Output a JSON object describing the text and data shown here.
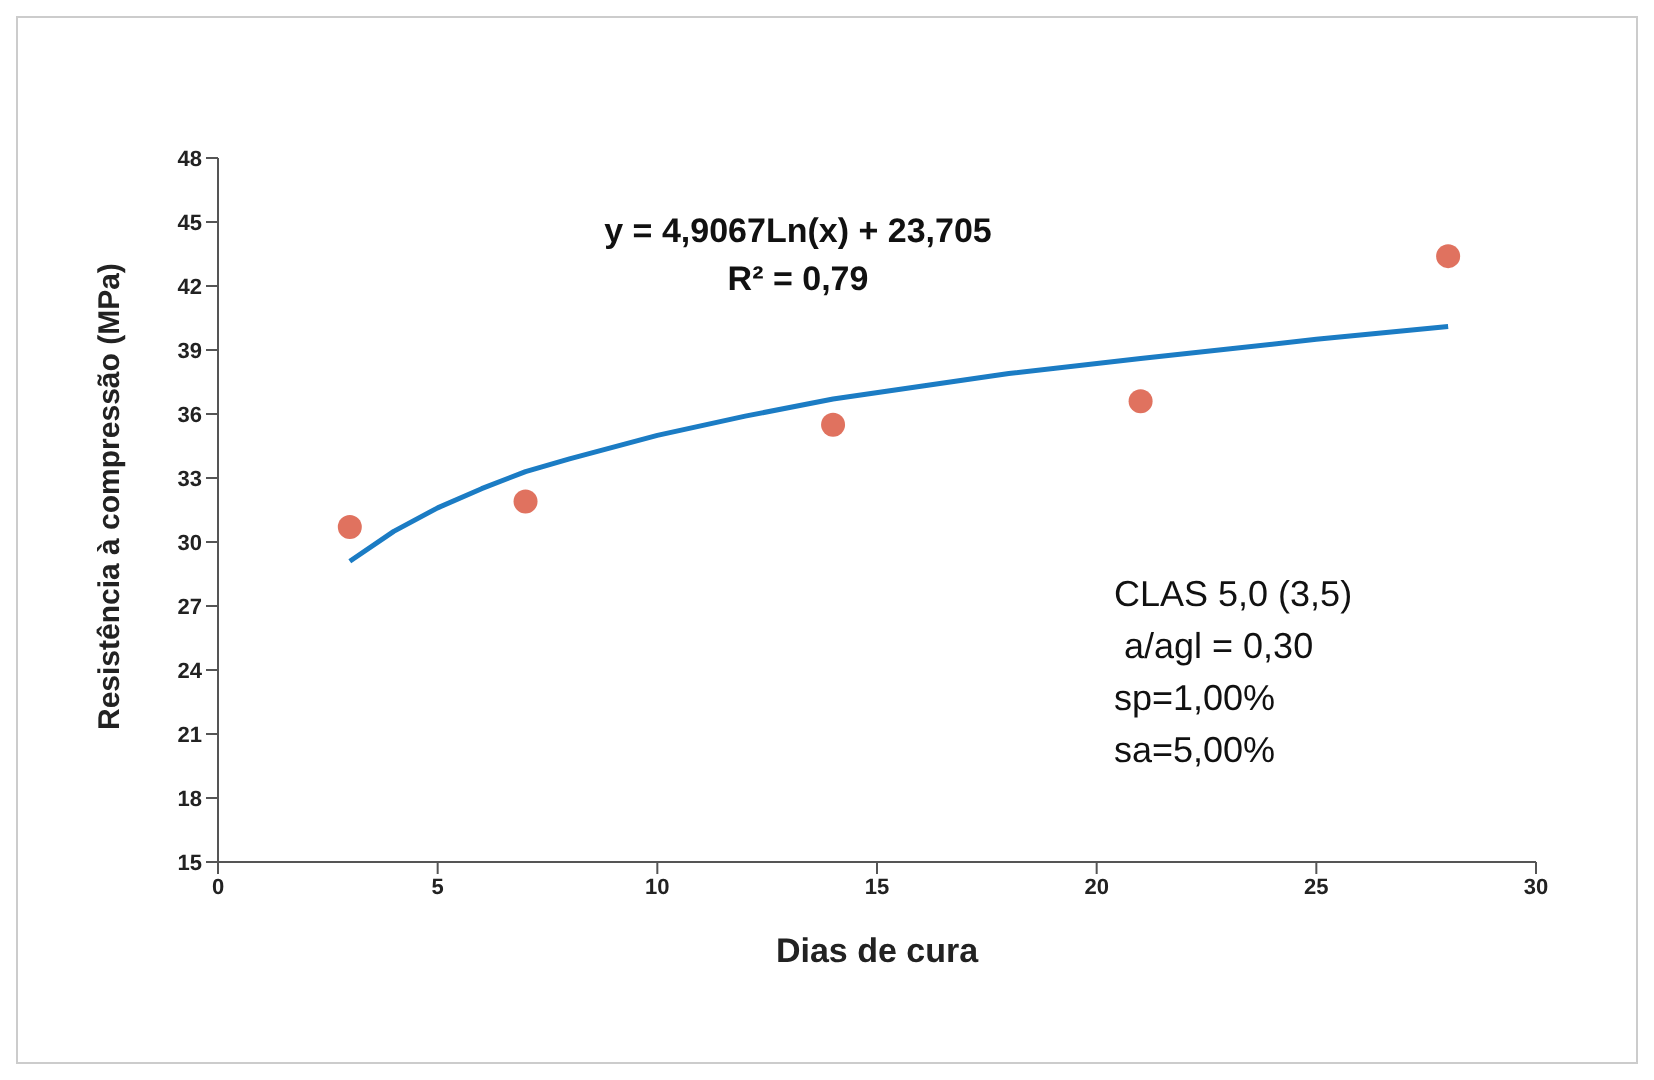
{
  "chart_data": {
    "type": "scatter",
    "xlabel": "Dias de cura",
    "ylabel": "Resistência à compressão (MPa)",
    "xlim": [
      0,
      30
    ],
    "xticks": [
      0,
      5,
      10,
      15,
      20,
      25,
      30
    ],
    "ylim": [
      15,
      48
    ],
    "yticks": [
      15,
      18,
      21,
      24,
      27,
      30,
      33,
      36,
      39,
      42,
      45,
      48
    ],
    "marker": "circle",
    "series": [
      {
        "color": "#e0725f",
        "x": [
          3,
          7,
          14,
          21,
          28
        ],
        "values": [
          30.7,
          31.9,
          35.5,
          36.6,
          43.4
        ]
      },
      {
        "type": "line",
        "color": "#1b7cc4",
        "marker": "none",
        "x": [
          3,
          4,
          5,
          6,
          7,
          8,
          10,
          12,
          14,
          16,
          18,
          21,
          25,
          28
        ],
        "values": [
          29.1,
          30.5,
          31.6,
          32.5,
          33.3,
          33.9,
          35.0,
          35.9,
          36.7,
          37.3,
          37.9,
          38.6,
          39.5,
          40.1
        ]
      }
    ],
    "annotations": [
      "y = 4,9067Ln(x) + 23,705",
      "R² = 0,79",
      "CLAS 5,0 (3,5)",
      " a/agl = 0,30",
      "sp=1,00%",
      "sa=5,00%"
    ]
  }
}
